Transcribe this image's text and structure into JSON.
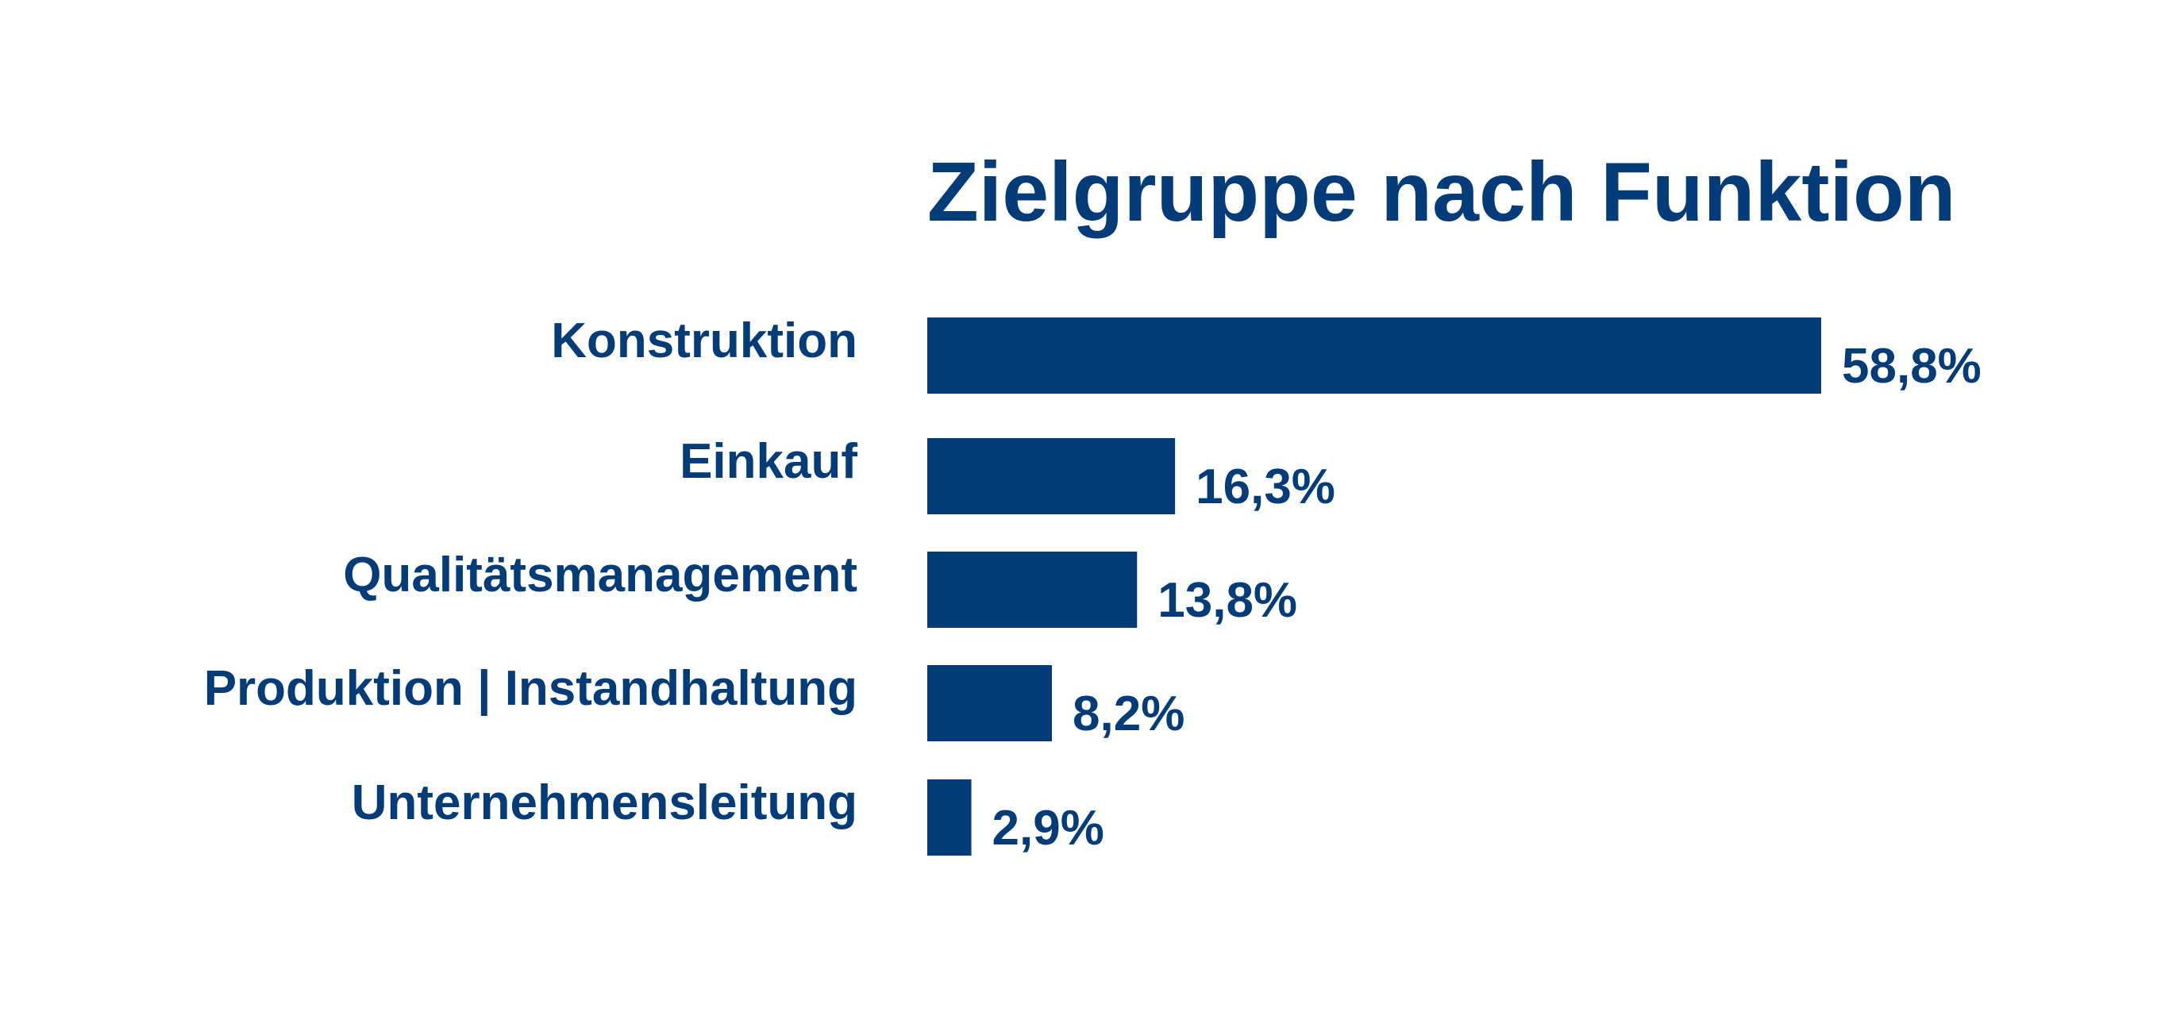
{
  "colors": {
    "primary": "#043c7a",
    "background": "#ffffff"
  },
  "chart_data": {
    "type": "bar",
    "orientation": "horizontal",
    "title": "Zielgruppe nach Funktion",
    "categories": [
      "Konstruktion",
      "Einkauf",
      "Qualitätsmanagement",
      "Produktion | Instandhaltung",
      "Unternehmensleitung"
    ],
    "values": [
      58.8,
      16.3,
      13.8,
      8.2,
      2.9
    ],
    "value_labels": [
      "58,8%",
      "16,3%",
      "13,8%",
      "8,2%",
      "2,9%"
    ],
    "unit": "%",
    "xlabel": "",
    "ylabel": "",
    "grid": false,
    "legend": "none"
  }
}
